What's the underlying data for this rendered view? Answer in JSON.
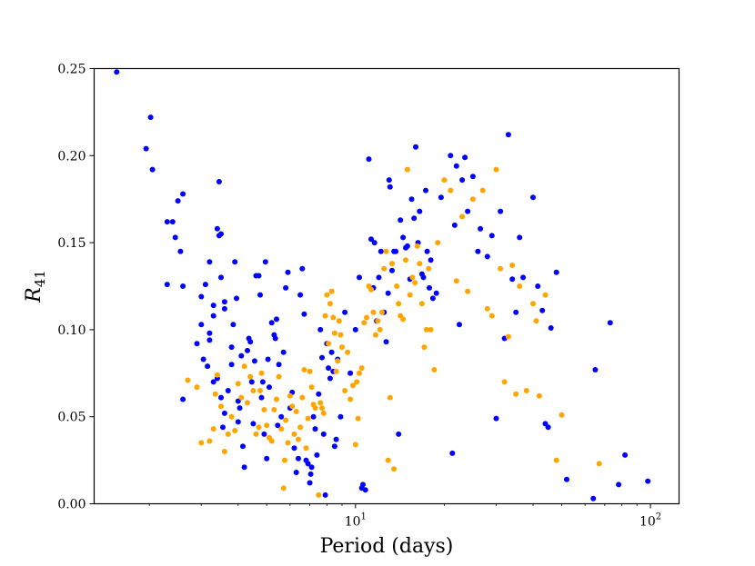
{
  "chart_data": {
    "type": "scatter",
    "xlabel": "Period (days)",
    "ylabel": "R",
    "ylabel_subscript": "41",
    "xscale": "log",
    "xlim": [
      1.3,
      125
    ],
    "ylim": [
      0,
      0.25
    ],
    "yticks": [
      "0.00",
      "0.05",
      "0.10",
      "0.15",
      "0.20",
      "0.25"
    ],
    "xticks": [
      {
        "value": 10,
        "base": "10",
        "exp": "1"
      },
      {
        "value": 100,
        "base": "10",
        "exp": "2"
      }
    ],
    "grid": false,
    "series": [
      {
        "color": "#0000ff",
        "points": [
          [
            1.55,
            0.248
          ],
          [
            1.95,
            0.204
          ],
          [
            2.02,
            0.222
          ],
          [
            2.05,
            0.192
          ],
          [
            2.3,
            0.162
          ],
          [
            2.4,
            0.162
          ],
          [
            2.45,
            0.153
          ],
          [
            2.5,
            0.174
          ],
          [
            2.6,
            0.178
          ],
          [
            2.55,
            0.145
          ],
          [
            2.6,
            0.125
          ],
          [
            2.3,
            0.126
          ],
          [
            2.6,
            0.06
          ],
          [
            2.9,
            0.092
          ],
          [
            3.0,
            0.103
          ],
          [
            3.0,
            0.119
          ],
          [
            3.1,
            0.126
          ],
          [
            3.2,
            0.139
          ],
          [
            3.2,
            0.094
          ],
          [
            3.3,
            0.108
          ],
          [
            3.3,
            0.114
          ],
          [
            3.4,
            0.158
          ],
          [
            3.45,
            0.154
          ],
          [
            3.5,
            0.13
          ],
          [
            3.5,
            0.155
          ],
          [
            3.6,
            0.112
          ],
          [
            3.6,
            0.116
          ],
          [
            3.45,
            0.185
          ],
          [
            3.4,
            0.072
          ],
          [
            3.2,
            0.098
          ],
          [
            3.15,
            0.079
          ],
          [
            3.05,
            0.083
          ],
          [
            3.3,
            0.07
          ],
          [
            3.5,
            0.061
          ],
          [
            3.6,
            0.052
          ],
          [
            3.55,
            0.044
          ],
          [
            3.7,
            0.065
          ],
          [
            3.8,
            0.08
          ],
          [
            3.8,
            0.09
          ],
          [
            3.85,
            0.103
          ],
          [
            3.9,
            0.139
          ],
          [
            3.95,
            0.118
          ],
          [
            4.0,
            0.059
          ],
          [
            4.0,
            0.047
          ],
          [
            4.05,
            0.055
          ],
          [
            4.1,
            0.085
          ],
          [
            4.15,
            0.033
          ],
          [
            4.2,
            0.021
          ],
          [
            4.3,
            0.088
          ],
          [
            4.35,
            0.095
          ],
          [
            4.4,
            0.093
          ],
          [
            4.45,
            0.07
          ],
          [
            4.5,
            0.046
          ],
          [
            4.55,
            0.082
          ],
          [
            4.6,
            0.131
          ],
          [
            4.7,
            0.131
          ],
          [
            4.75,
            0.12
          ],
          [
            4.8,
            0.061
          ],
          [
            4.85,
            0.07
          ],
          [
            4.9,
            0.04
          ],
          [
            4.95,
            0.139
          ],
          [
            5.0,
            0.026
          ],
          [
            5.05,
            0.083
          ],
          [
            5.1,
            0.067
          ],
          [
            5.2,
            0.104
          ],
          [
            5.3,
            0.097
          ],
          [
            5.35,
            0.095
          ],
          [
            5.4,
            0.106
          ],
          [
            5.45,
            0.045
          ],
          [
            5.5,
            0.08
          ],
          [
            5.6,
            0.05
          ],
          [
            5.7,
            0.087
          ],
          [
            5.8,
            0.124
          ],
          [
            5.9,
            0.133
          ],
          [
            6.0,
            0.055
          ],
          [
            6.1,
            0.064
          ],
          [
            6.2,
            0.032
          ],
          [
            6.3,
            0.018
          ],
          [
            6.4,
            0.026
          ],
          [
            6.5,
            0.12
          ],
          [
            6.6,
            0.135
          ],
          [
            6.7,
            0.109
          ],
          [
            6.8,
            0.025
          ],
          [
            6.9,
            0.023
          ],
          [
            7.0,
            0.012
          ],
          [
            7.05,
            0.017
          ],
          [
            7.1,
            0.021
          ],
          [
            7.2,
            0.05
          ],
          [
            7.3,
            0.043
          ],
          [
            7.4,
            0.028
          ],
          [
            7.5,
            0.063
          ],
          [
            7.6,
            0.1
          ],
          [
            7.7,
            0.084
          ],
          [
            7.8,
            0.04
          ],
          [
            7.9,
            0.005
          ],
          [
            8.0,
            0.092
          ],
          [
            8.1,
            0.078
          ],
          [
            8.2,
            0.072
          ],
          [
            8.3,
            0.087
          ],
          [
            8.4,
            0.076
          ],
          [
            8.5,
            0.033
          ],
          [
            8.6,
            0.037
          ],
          [
            8.7,
            0.083
          ],
          [
            8.9,
            0.05
          ],
          [
            9.2,
            0.11
          ],
          [
            9.6,
            0.075
          ],
          [
            10.0,
            0.1
          ],
          [
            10.3,
            0.13
          ],
          [
            10.5,
            0.009
          ],
          [
            10.6,
            0.011
          ],
          [
            10.8,
            0.008
          ],
          [
            11.1,
            0.198
          ],
          [
            11.3,
            0.152
          ],
          [
            11.5,
            0.124
          ],
          [
            11.6,
            0.15
          ],
          [
            11.8,
            0.105
          ],
          [
            12.0,
            0.13
          ],
          [
            12.2,
            0.145
          ],
          [
            12.5,
            0.11
          ],
          [
            12.7,
            0.093
          ],
          [
            12.9,
            0.121
          ],
          [
            13.0,
            0.186
          ],
          [
            13.1,
            0.182
          ],
          [
            13.3,
            0.134
          ],
          [
            13.5,
            0.145
          ],
          [
            13.7,
            0.145
          ],
          [
            14.0,
            0.04
          ],
          [
            14.2,
            0.163
          ],
          [
            14.5,
            0.153
          ],
          [
            14.8,
            0.147
          ],
          [
            15.0,
            0.148
          ],
          [
            15.3,
            0.129
          ],
          [
            15.5,
            0.175
          ],
          [
            15.8,
            0.164
          ],
          [
            16.0,
            0.205
          ],
          [
            16.3,
            0.15
          ],
          [
            16.5,
            0.168
          ],
          [
            16.8,
            0.132
          ],
          [
            17.0,
            0.13
          ],
          [
            17.3,
            0.18
          ],
          [
            17.5,
            0.145
          ],
          [
            17.8,
            0.124
          ],
          [
            18.0,
            0.14
          ],
          [
            18.3,
            0.118
          ],
          [
            18.8,
            0.121
          ],
          [
            19.5,
            0.176
          ],
          [
            21.0,
            0.2
          ],
          [
            21.3,
            0.029
          ],
          [
            21.7,
            0.16
          ],
          [
            22.0,
            0.194
          ],
          [
            22.5,
            0.103
          ],
          [
            23.0,
            0.186
          ],
          [
            23.5,
            0.199
          ],
          [
            24.0,
            0.168
          ],
          [
            25.0,
            0.188
          ],
          [
            26.0,
            0.145
          ],
          [
            26.5,
            0.158
          ],
          [
            28.0,
            0.142
          ],
          [
            29.0,
            0.154
          ],
          [
            30.0,
            0.049
          ],
          [
            31.0,
            0.168
          ],
          [
            32.0,
            0.095
          ],
          [
            33.0,
            0.212
          ],
          [
            34.0,
            0.129
          ],
          [
            35.0,
            0.11
          ],
          [
            36.0,
            0.153
          ],
          [
            37.0,
            0.13
          ],
          [
            40.0,
            0.176
          ],
          [
            41.5,
            0.125
          ],
          [
            43.0,
            0.111
          ],
          [
            44.0,
            0.046
          ],
          [
            45.0,
            0.044
          ],
          [
            46.0,
            0.101
          ],
          [
            48.0,
            0.133
          ],
          [
            52.0,
            0.014
          ],
          [
            64.0,
            0.003
          ],
          [
            65.0,
            0.077
          ],
          [
            73.0,
            0.104
          ],
          [
            78.0,
            0.011
          ],
          [
            82.0,
            0.028
          ],
          [
            98.0,
            0.013
          ]
        ]
      },
      {
        "color": "#ffa500",
        "points": [
          [
            2.7,
            0.071
          ],
          [
            2.9,
            0.067
          ],
          [
            3.0,
            0.035
          ],
          [
            3.2,
            0.036
          ],
          [
            3.3,
            0.043
          ],
          [
            3.35,
            0.063
          ],
          [
            3.4,
            0.074
          ],
          [
            3.5,
            0.056
          ],
          [
            3.6,
            0.03
          ],
          [
            3.7,
            0.04
          ],
          [
            3.8,
            0.05
          ],
          [
            3.9,
            0.042
          ],
          [
            4.0,
            0.069
          ],
          [
            4.1,
            0.061
          ],
          [
            4.2,
            0.079
          ],
          [
            4.3,
            0.058
          ],
          [
            4.4,
            0.073
          ],
          [
            4.5,
            0.065
          ],
          [
            4.6,
            0.04
          ],
          [
            4.7,
            0.044
          ],
          [
            4.75,
            0.065
          ],
          [
            4.8,
            0.075
          ],
          [
            4.9,
            0.054
          ],
          [
            5.0,
            0.045
          ],
          [
            5.1,
            0.038
          ],
          [
            5.2,
            0.036
          ],
          [
            5.3,
            0.054
          ],
          [
            5.4,
            0.06
          ],
          [
            5.5,
            0.073
          ],
          [
            5.6,
            0.043
          ],
          [
            5.7,
            0.009
          ],
          [
            5.75,
            0.025
          ],
          [
            5.8,
            0.048
          ],
          [
            5.9,
            0.035
          ],
          [
            6.0,
            0.062
          ],
          [
            6.1,
            0.056
          ],
          [
            6.2,
            0.04
          ],
          [
            6.3,
            0.053
          ],
          [
            6.4,
            0.037
          ],
          [
            6.5,
            0.044
          ],
          [
            6.6,
            0.061
          ],
          [
            6.7,
            0.077
          ],
          [
            6.8,
            0.032
          ],
          [
            6.9,
            0.049
          ],
          [
            7.0,
            0.076
          ],
          [
            7.1,
            0.067
          ],
          [
            7.2,
            0.057
          ],
          [
            7.3,
            0.055
          ],
          [
            7.5,
            0.005
          ],
          [
            7.6,
            0.058
          ],
          [
            7.7,
            0.055
          ],
          [
            7.8,
            0.052
          ],
          [
            7.9,
            0.108
          ],
          [
            8.0,
            0.12
          ],
          [
            8.1,
            0.092
          ],
          [
            8.2,
            0.115
          ],
          [
            8.3,
            0.122
          ],
          [
            8.4,
            0.107
          ],
          [
            8.5,
            0.098
          ],
          [
            8.6,
            0.076
          ],
          [
            8.7,
            0.082
          ],
          [
            8.8,
            0.105
          ],
          [
            8.9,
            0.097
          ],
          [
            9.0,
            0.09
          ],
          [
            9.2,
            0.065
          ],
          [
            9.4,
            0.087
          ],
          [
            9.6,
            0.06
          ],
          [
            9.8,
            0.068
          ],
          [
            10.0,
            0.034
          ],
          [
            10.1,
            0.07
          ],
          [
            10.2,
            0.049
          ],
          [
            10.3,
            0.075
          ],
          [
            10.5,
            0.078
          ],
          [
            10.7,
            0.104
          ],
          [
            10.9,
            0.107
          ],
          [
            11.1,
            0.125
          ],
          [
            11.3,
            0.123
          ],
          [
            11.5,
            0.11
          ],
          [
            11.7,
            0.097
          ],
          [
            11.9,
            0.105
          ],
          [
            12.1,
            0.1
          ],
          [
            12.3,
            0.11
          ],
          [
            12.5,
            0.135
          ],
          [
            12.7,
            0.145
          ],
          [
            12.9,
            0.025
          ],
          [
            13.1,
            0.061
          ],
          [
            13.3,
            0.138
          ],
          [
            13.5,
            0.02
          ],
          [
            13.8,
            0.125
          ],
          [
            14.0,
            0.115
          ],
          [
            14.2,
            0.108
          ],
          [
            14.5,
            0.106
          ],
          [
            14.8,
            0.14
          ],
          [
            15.0,
            0.192
          ],
          [
            15.3,
            0.12
          ],
          [
            15.6,
            0.13
          ],
          [
            15.9,
            0.127
          ],
          [
            16.2,
            0.148
          ],
          [
            16.5,
            0.138
          ],
          [
            16.8,
            0.115
          ],
          [
            17.1,
            0.09
          ],
          [
            17.4,
            0.1
          ],
          [
            17.7,
            0.135
          ],
          [
            18.0,
            0.1
          ],
          [
            18.5,
            0.077
          ],
          [
            19.0,
            0.15
          ],
          [
            20.0,
            0.186
          ],
          [
            21.0,
            0.18
          ],
          [
            22.0,
            0.128
          ],
          [
            23.0,
            0.165
          ],
          [
            24.0,
            0.122
          ],
          [
            25.0,
            0.175
          ],
          [
            27.0,
            0.18
          ],
          [
            28.0,
            0.112
          ],
          [
            29.0,
            0.108
          ],
          [
            30.0,
            0.192
          ],
          [
            31.0,
            0.135
          ],
          [
            32.0,
            0.07
          ],
          [
            33.0,
            0.096
          ],
          [
            34.0,
            0.137
          ],
          [
            35.0,
            0.063
          ],
          [
            36.0,
            0.125
          ],
          [
            38.0,
            0.065
          ],
          [
            40.0,
            0.115
          ],
          [
            41.0,
            0.105
          ],
          [
            42.0,
            0.062
          ],
          [
            44.0,
            0.12
          ],
          [
            48.0,
            0.025
          ],
          [
            50.0,
            0.051
          ],
          [
            67.0,
            0.023
          ]
        ]
      }
    ]
  }
}
